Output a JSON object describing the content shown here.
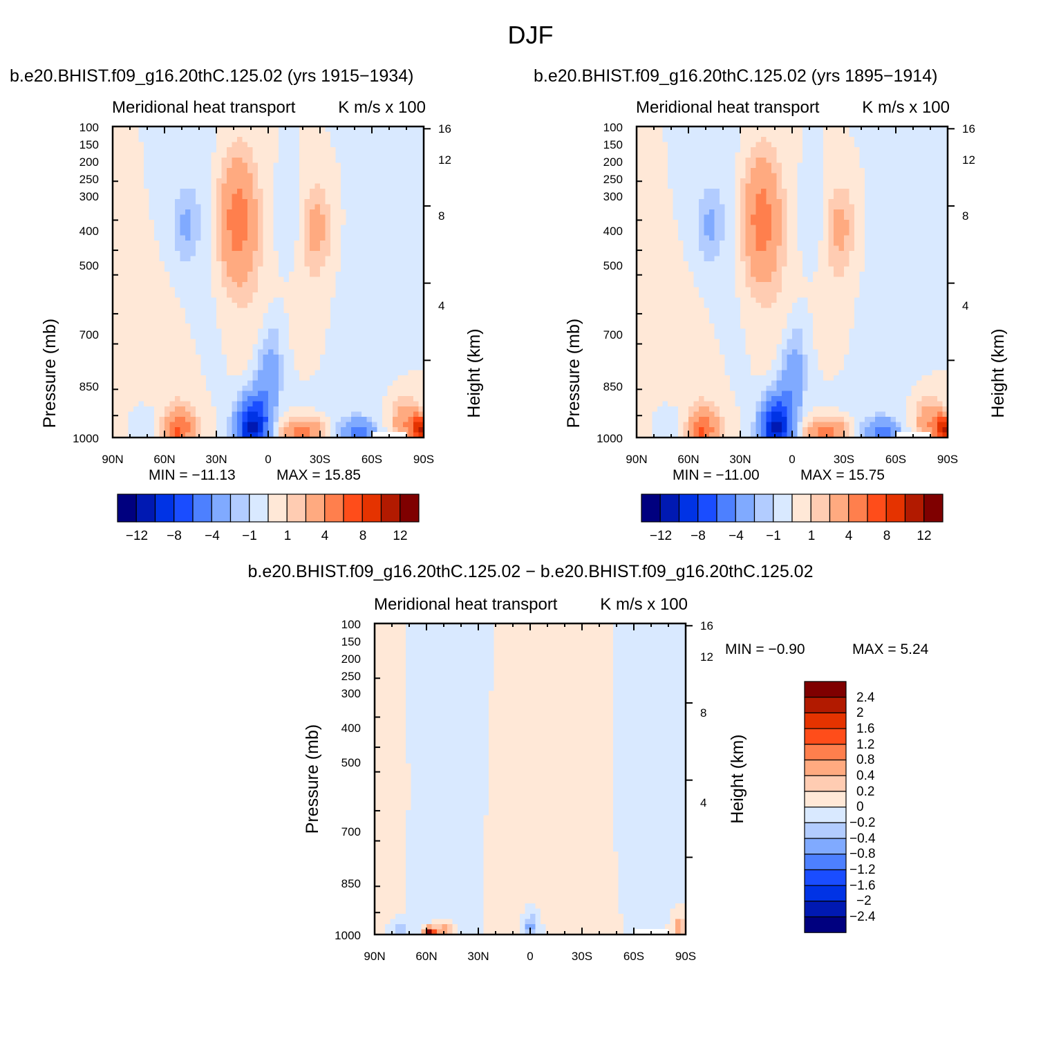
{
  "figure": {
    "title": "DJF"
  },
  "palette": {
    "abs": [
      "#00007f",
      "#0019b2",
      "#0033e5",
      "#1a4dff",
      "#4d80ff",
      "#80aaff",
      "#b2ccff",
      "#d9e9ff",
      "#ffe8d7",
      "#ffccb2",
      "#ffaa80",
      "#ff7f4d",
      "#ff4d1a",
      "#e53300",
      "#b21a00",
      "#7f0000"
    ],
    "diff": [
      "#00007f",
      "#0019b2",
      "#0033e5",
      "#1a4dff",
      "#4d80ff",
      "#80aaff",
      "#b2ccff",
      "#d9e9ff",
      "#ffe8d7",
      "#ffccb2",
      "#ffaa80",
      "#ff7f4d",
      "#ff4d1a",
      "#e53300",
      "#b21a00",
      "#7f0000"
    ]
  },
  "panels": {
    "left": {
      "case_title": "b.e20.BHIST.f09_g16.20thC.125.02 (yrs 1915−1934)",
      "variable": "Meridional heat transport",
      "units": "K m/s x 100",
      "min_label": "MIN = −11.13",
      "max_label": "MAX =   15.85"
    },
    "right": {
      "case_title": "b.e20.BHIST.f09_g16.20thC.125.02 (yrs 1895−1914)",
      "variable": "Meridional heat transport",
      "units": "K m/s x 100",
      "min_label": "MIN = −11.00",
      "max_label": "MAX =   15.75"
    },
    "diff": {
      "case_title": "b.e20.BHIST.f09_g16.20thC.125.02 − b.e20.BHIST.f09_g16.20thC.125.02",
      "variable": "Meridional heat transport",
      "units": "K m/s x 100",
      "min_label": "MIN =   −0.90",
      "max_label": "MAX =     5.24"
    }
  },
  "axes": {
    "xlabels": [
      "90N",
      "60N",
      "30N",
      "0",
      "30S",
      "60S",
      "90S"
    ],
    "ylabel": "Pressure (mb)",
    "ylabel_right": "Height (km)",
    "pressure_ticks": [
      "100",
      "150",
      "200",
      "250",
      "300",
      "400",
      "500",
      "700",
      "850",
      "1000"
    ],
    "height_ticks": [
      "16",
      "12",
      "8",
      "4"
    ]
  },
  "colorbars": {
    "abs_labels": [
      "−12",
      "−8",
      "−4",
      "−1",
      "1",
      "4",
      "8",
      "12"
    ],
    "diff_labels": [
      "2.4",
      "2",
      "1.6",
      "1.2",
      "0.8",
      "0.4",
      "0.2",
      "0",
      "−0.2",
      "−0.4",
      "−0.8",
      "−1.2",
      "−1.6",
      "−2",
      "−2.4"
    ]
  },
  "chart_data": [
    {
      "type": "heatmap",
      "title": "b.e20.BHIST.f09_g16.20thC.125.02 (yrs 1915−1934)",
      "subtitle": "Meridional heat transport",
      "units": "K m/s x 100",
      "xlabel": "",
      "ylabel": "Pressure (mb)",
      "ylabel_right": "Height (km)",
      "x_domain": [
        90,
        -90
      ],
      "y_domain_mb": [
        100,
        1000
      ],
      "y_scale": "log",
      "levels": [
        -12,
        -10,
        -8,
        -6,
        -4,
        -2,
        -1,
        0,
        1,
        2,
        4,
        6,
        8,
        10,
        12
      ],
      "min": -11.13,
      "max": 15.85,
      "features": [
        {
          "lat": 85,
          "p": 500,
          "v": 0.5,
          "dlat": 15,
          "dlp": 0.7
        },
        {
          "lat": 58,
          "p": 620,
          "v": 0.5,
          "dlat": 10,
          "dlp": 0.5
        },
        {
          "lat": 38,
          "p": 190,
          "v": -0.7,
          "dlat": 16,
          "dlp": 0.55
        },
        {
          "lat": 48,
          "p": 210,
          "v": -1.8,
          "dlat": 5,
          "dlp": 0.18
        },
        {
          "lat": 18,
          "p": 200,
          "v": 5.3,
          "dlat": 8,
          "dlp": 0.35
        },
        {
          "lat": 5,
          "p": 650,
          "v": 0.7,
          "dlat": 8,
          "dlp": 0.7
        },
        {
          "lat": -12,
          "p": 200,
          "v": -1.0,
          "dlat": 5,
          "dlp": 0.22
        },
        {
          "lat": -28,
          "p": 210,
          "v": 2.4,
          "dlat": 6,
          "dlp": 0.22
        },
        {
          "lat": -25,
          "p": 360,
          "v": 0.7,
          "dlat": 9,
          "dlp": 0.5
        },
        {
          "lat": -35,
          "p": 650,
          "v": -0.4,
          "dlat": 20,
          "dlp": 0.8
        },
        {
          "lat": 50,
          "p": 930,
          "v": 4.5,
          "dlat": 6,
          "dlp": 0.11
        },
        {
          "lat": 55,
          "p": 975,
          "v": 3.0,
          "dlat": 4,
          "dlp": 0.06
        },
        {
          "lat": 72,
          "p": 920,
          "v": -1.2,
          "dlat": 6,
          "dlp": 0.12
        },
        {
          "lat": 10,
          "p": 940,
          "v": -10.2,
          "dlat": 6,
          "dlp": 0.16
        },
        {
          "lat": 2,
          "p": 760,
          "v": -3.6,
          "dlat": 5,
          "dlp": 0.28
        },
        {
          "lat": -3,
          "p": 560,
          "v": -1.6,
          "dlat": 4,
          "dlp": 0.22
        },
        {
          "lat": -20,
          "p": 960,
          "v": 5.0,
          "dlat": 9,
          "dlp": 0.07
        },
        {
          "lat": -52,
          "p": 960,
          "v": -5.0,
          "dlat": 7,
          "dlp": 0.07
        },
        {
          "lat": -80,
          "p": 900,
          "v": 4.0,
          "dlat": 6,
          "dlp": 0.12
        },
        {
          "lat": -88,
          "p": 940,
          "v": 9.0,
          "dlat": 3,
          "dlp": 0.07
        }
      ]
    },
    {
      "type": "heatmap",
      "title": "b.e20.BHIST.f09_g16.20thC.125.02 (yrs 1895−1914)",
      "subtitle": "Meridional heat transport",
      "units": "K m/s x 100",
      "xlabel": "",
      "ylabel": "Pressure (mb)",
      "ylabel_right": "Height (km)",
      "x_domain": [
        90,
        -90
      ],
      "y_domain_mb": [
        100,
        1000
      ],
      "y_scale": "log",
      "levels": [
        -12,
        -10,
        -8,
        -6,
        -4,
        -2,
        -1,
        0,
        1,
        2,
        4,
        6,
        8,
        10,
        12
      ],
      "min": -11.0,
      "max": 15.75,
      "features": [
        {
          "lat": 85,
          "p": 500,
          "v": 0.5,
          "dlat": 15,
          "dlp": 0.7
        },
        {
          "lat": 58,
          "p": 620,
          "v": 0.5,
          "dlat": 10,
          "dlp": 0.5
        },
        {
          "lat": 38,
          "p": 190,
          "v": -0.7,
          "dlat": 16,
          "dlp": 0.55
        },
        {
          "lat": 48,
          "p": 210,
          "v": -1.8,
          "dlat": 5,
          "dlp": 0.18
        },
        {
          "lat": 18,
          "p": 200,
          "v": 5.2,
          "dlat": 8,
          "dlp": 0.35
        },
        {
          "lat": 5,
          "p": 650,
          "v": 0.7,
          "dlat": 8,
          "dlp": 0.7
        },
        {
          "lat": -12,
          "p": 200,
          "v": -1.0,
          "dlat": 5,
          "dlp": 0.22
        },
        {
          "lat": -28,
          "p": 210,
          "v": 2.3,
          "dlat": 6,
          "dlp": 0.22
        },
        {
          "lat": -25,
          "p": 360,
          "v": 0.7,
          "dlat": 9,
          "dlp": 0.5
        },
        {
          "lat": -35,
          "p": 650,
          "v": -0.4,
          "dlat": 20,
          "dlp": 0.8
        },
        {
          "lat": 50,
          "p": 930,
          "v": 4.4,
          "dlat": 6,
          "dlp": 0.11
        },
        {
          "lat": 55,
          "p": 975,
          "v": 3.0,
          "dlat": 4,
          "dlp": 0.06
        },
        {
          "lat": 72,
          "p": 920,
          "v": -1.2,
          "dlat": 6,
          "dlp": 0.12
        },
        {
          "lat": 10,
          "p": 940,
          "v": -10.1,
          "dlat": 6,
          "dlp": 0.16
        },
        {
          "lat": 2,
          "p": 760,
          "v": -3.6,
          "dlat": 5,
          "dlp": 0.28
        },
        {
          "lat": -3,
          "p": 560,
          "v": -1.6,
          "dlat": 4,
          "dlp": 0.22
        },
        {
          "lat": -20,
          "p": 960,
          "v": 5.0,
          "dlat": 9,
          "dlp": 0.07
        },
        {
          "lat": -52,
          "p": 960,
          "v": -5.0,
          "dlat": 7,
          "dlp": 0.07
        },
        {
          "lat": -80,
          "p": 900,
          "v": 4.0,
          "dlat": 6,
          "dlp": 0.12
        },
        {
          "lat": -88,
          "p": 940,
          "v": 9.0,
          "dlat": 3,
          "dlp": 0.07
        }
      ]
    },
    {
      "type": "heatmap",
      "title": "b.e20.BHIST.f09_g16.20thC.125.02 − b.e20.BHIST.f09_g16.20thC.125.02",
      "subtitle": "Meridional heat transport",
      "units": "K m/s x 100",
      "xlabel": "",
      "ylabel": "Pressure (mb)",
      "ylabel_right": "Height (km)",
      "x_domain": [
        90,
        -90
      ],
      "y_domain_mb": [
        100,
        1000
      ],
      "y_scale": "log",
      "levels": [
        -2.4,
        -2,
        -1.6,
        -1.2,
        -0.8,
        -0.4,
        -0.2,
        0,
        0.2,
        0.4,
        0.8,
        1.2,
        1.6,
        2,
        2.4
      ],
      "min": -0.9,
      "max": 5.24,
      "features": [
        {
          "lat": 85,
          "p": 400,
          "v": 0.1,
          "dlat": 6,
          "dlp": 0.6
        },
        {
          "lat": 40,
          "p": 500,
          "v": -0.06,
          "dlat": 14,
          "dlp": 0.9
        },
        {
          "lat": 15,
          "p": 700,
          "v": 0.1,
          "dlat": 8,
          "dlp": 0.8
        },
        {
          "lat": 3,
          "p": 180,
          "v": 0.1,
          "dlat": 6,
          "dlp": 0.3
        },
        {
          "lat": -30,
          "p": 700,
          "v": 0.1,
          "dlat": 12,
          "dlp": 0.8
        },
        {
          "lat": -60,
          "p": 400,
          "v": -0.05,
          "dlat": 10,
          "dlp": 0.6
        },
        {
          "lat": 58,
          "p": 985,
          "v": 2.6,
          "dlat": 2,
          "dlp": 0.025
        },
        {
          "lat": 50,
          "p": 970,
          "v": 0.7,
          "dlat": 3,
          "dlp": 0.04
        },
        {
          "lat": 76,
          "p": 970,
          "v": -0.3,
          "dlat": 4,
          "dlp": 0.05
        },
        {
          "lat": 0,
          "p": 950,
          "v": -0.5,
          "dlat": 3,
          "dlp": 0.07
        },
        {
          "lat": -86,
          "p": 950,
          "v": 0.7,
          "dlat": 2,
          "dlp": 0.05
        }
      ]
    }
  ]
}
